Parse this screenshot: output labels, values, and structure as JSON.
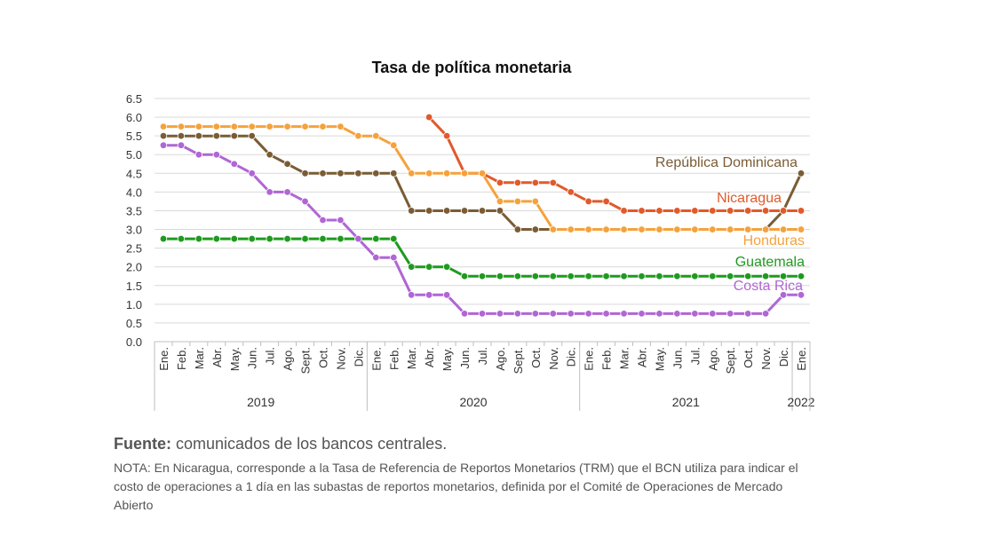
{
  "chart_data": {
    "type": "line",
    "title": "Tasa de política monetaria",
    "ylim": [
      0,
      6.5
    ],
    "y_ticks": [
      "0.0",
      "0.5",
      "1.0",
      "1.5",
      "2.0",
      "2.5",
      "3.0",
      "3.5",
      "4.0",
      "4.5",
      "5.0",
      "5.5",
      "6.0",
      "6.5"
    ],
    "grid": true,
    "x": [
      "Ene.",
      "Feb.",
      "Mar.",
      "Abr.",
      "May.",
      "Jun.",
      "Jul.",
      "Ago.",
      "Sept.",
      "Oct.",
      "Nov.",
      "Dic.",
      "Ene.",
      "Feb.",
      "Mar.",
      "Abr.",
      "May.",
      "Jun.",
      "Jul.",
      "Ago.",
      "Sept.",
      "Oct.",
      "Nov.",
      "Dic.",
      "Ene.",
      "Feb.",
      "Mar.",
      "Abr.",
      "May.",
      "Jun.",
      "Jul.",
      "Ago.",
      "Sept.",
      "Oct.",
      "Nov.",
      "Dic.",
      "Ene."
    ],
    "year_groups": [
      {
        "label": "2019",
        "start": 0,
        "end": 11
      },
      {
        "label": "2020",
        "start": 12,
        "end": 23
      },
      {
        "label": "2021",
        "start": 24,
        "end": 35
      },
      {
        "label": "2022",
        "start": 36,
        "end": 36
      }
    ],
    "series": [
      {
        "name": "República Dominicana",
        "color": "#7a5c34",
        "values": [
          5.5,
          5.5,
          5.5,
          5.5,
          5.5,
          5.5,
          5.0,
          4.75,
          4.5,
          4.5,
          4.5,
          4.5,
          4.5,
          4.5,
          3.5,
          3.5,
          3.5,
          3.5,
          3.5,
          3.5,
          3.0,
          3.0,
          3.0,
          3.0,
          3.0,
          3.0,
          3.0,
          3.0,
          3.0,
          3.0,
          3.0,
          3.0,
          3.0,
          3.0,
          3.0,
          3.5,
          4.5
        ]
      },
      {
        "name": "Nicaragua",
        "color": "#e05a2b",
        "values": [
          null,
          null,
          null,
          null,
          null,
          null,
          null,
          null,
          null,
          null,
          null,
          null,
          null,
          null,
          null,
          6.0,
          5.5,
          4.5,
          4.5,
          4.25,
          4.25,
          4.25,
          4.25,
          4.0,
          3.75,
          3.75,
          3.5,
          3.5,
          3.5,
          3.5,
          3.5,
          3.5,
          3.5,
          3.5,
          3.5,
          3.5,
          3.5
        ]
      },
      {
        "name": "Honduras",
        "color": "#f5a23c",
        "values": [
          5.75,
          5.75,
          5.75,
          5.75,
          5.75,
          5.75,
          5.75,
          5.75,
          5.75,
          5.75,
          5.75,
          5.5,
          5.5,
          5.25,
          4.5,
          4.5,
          4.5,
          4.5,
          4.5,
          3.75,
          3.75,
          3.75,
          3.0,
          3.0,
          3.0,
          3.0,
          3.0,
          3.0,
          3.0,
          3.0,
          3.0,
          3.0,
          3.0,
          3.0,
          3.0,
          3.0,
          3.0
        ]
      },
      {
        "name": "Guatemala",
        "color": "#1f9a1f",
        "values": [
          2.75,
          2.75,
          2.75,
          2.75,
          2.75,
          2.75,
          2.75,
          2.75,
          2.75,
          2.75,
          2.75,
          2.75,
          2.75,
          2.75,
          2.0,
          2.0,
          2.0,
          1.75,
          1.75,
          1.75,
          1.75,
          1.75,
          1.75,
          1.75,
          1.75,
          1.75,
          1.75,
          1.75,
          1.75,
          1.75,
          1.75,
          1.75,
          1.75,
          1.75,
          1.75,
          1.75,
          1.75
        ]
      },
      {
        "name": "Costa Rica",
        "color": "#b066d4",
        "values": [
          5.25,
          5.25,
          5.0,
          5.0,
          4.75,
          4.5,
          4.0,
          4.0,
          3.75,
          3.25,
          3.25,
          2.75,
          2.25,
          2.25,
          1.25,
          1.25,
          1.25,
          0.75,
          0.75,
          0.75,
          0.75,
          0.75,
          0.75,
          0.75,
          0.75,
          0.75,
          0.75,
          0.75,
          0.75,
          0.75,
          0.75,
          0.75,
          0.75,
          0.75,
          0.75,
          1.25,
          1.25
        ]
      }
    ]
  },
  "footer": {
    "source_label": "Fuente:",
    "source_text": "comunicados de los bancos centrales.",
    "note": "NOTA: En Nicaragua, corresponde a la Tasa de Referencia de Reportos Monetarios (TRM) que el BCN utiliza para indicar el costo de operaciones a 1 día en las subastas de reportos monetarios, definida por el Comité de Operaciones de Mercado Abierto"
  }
}
